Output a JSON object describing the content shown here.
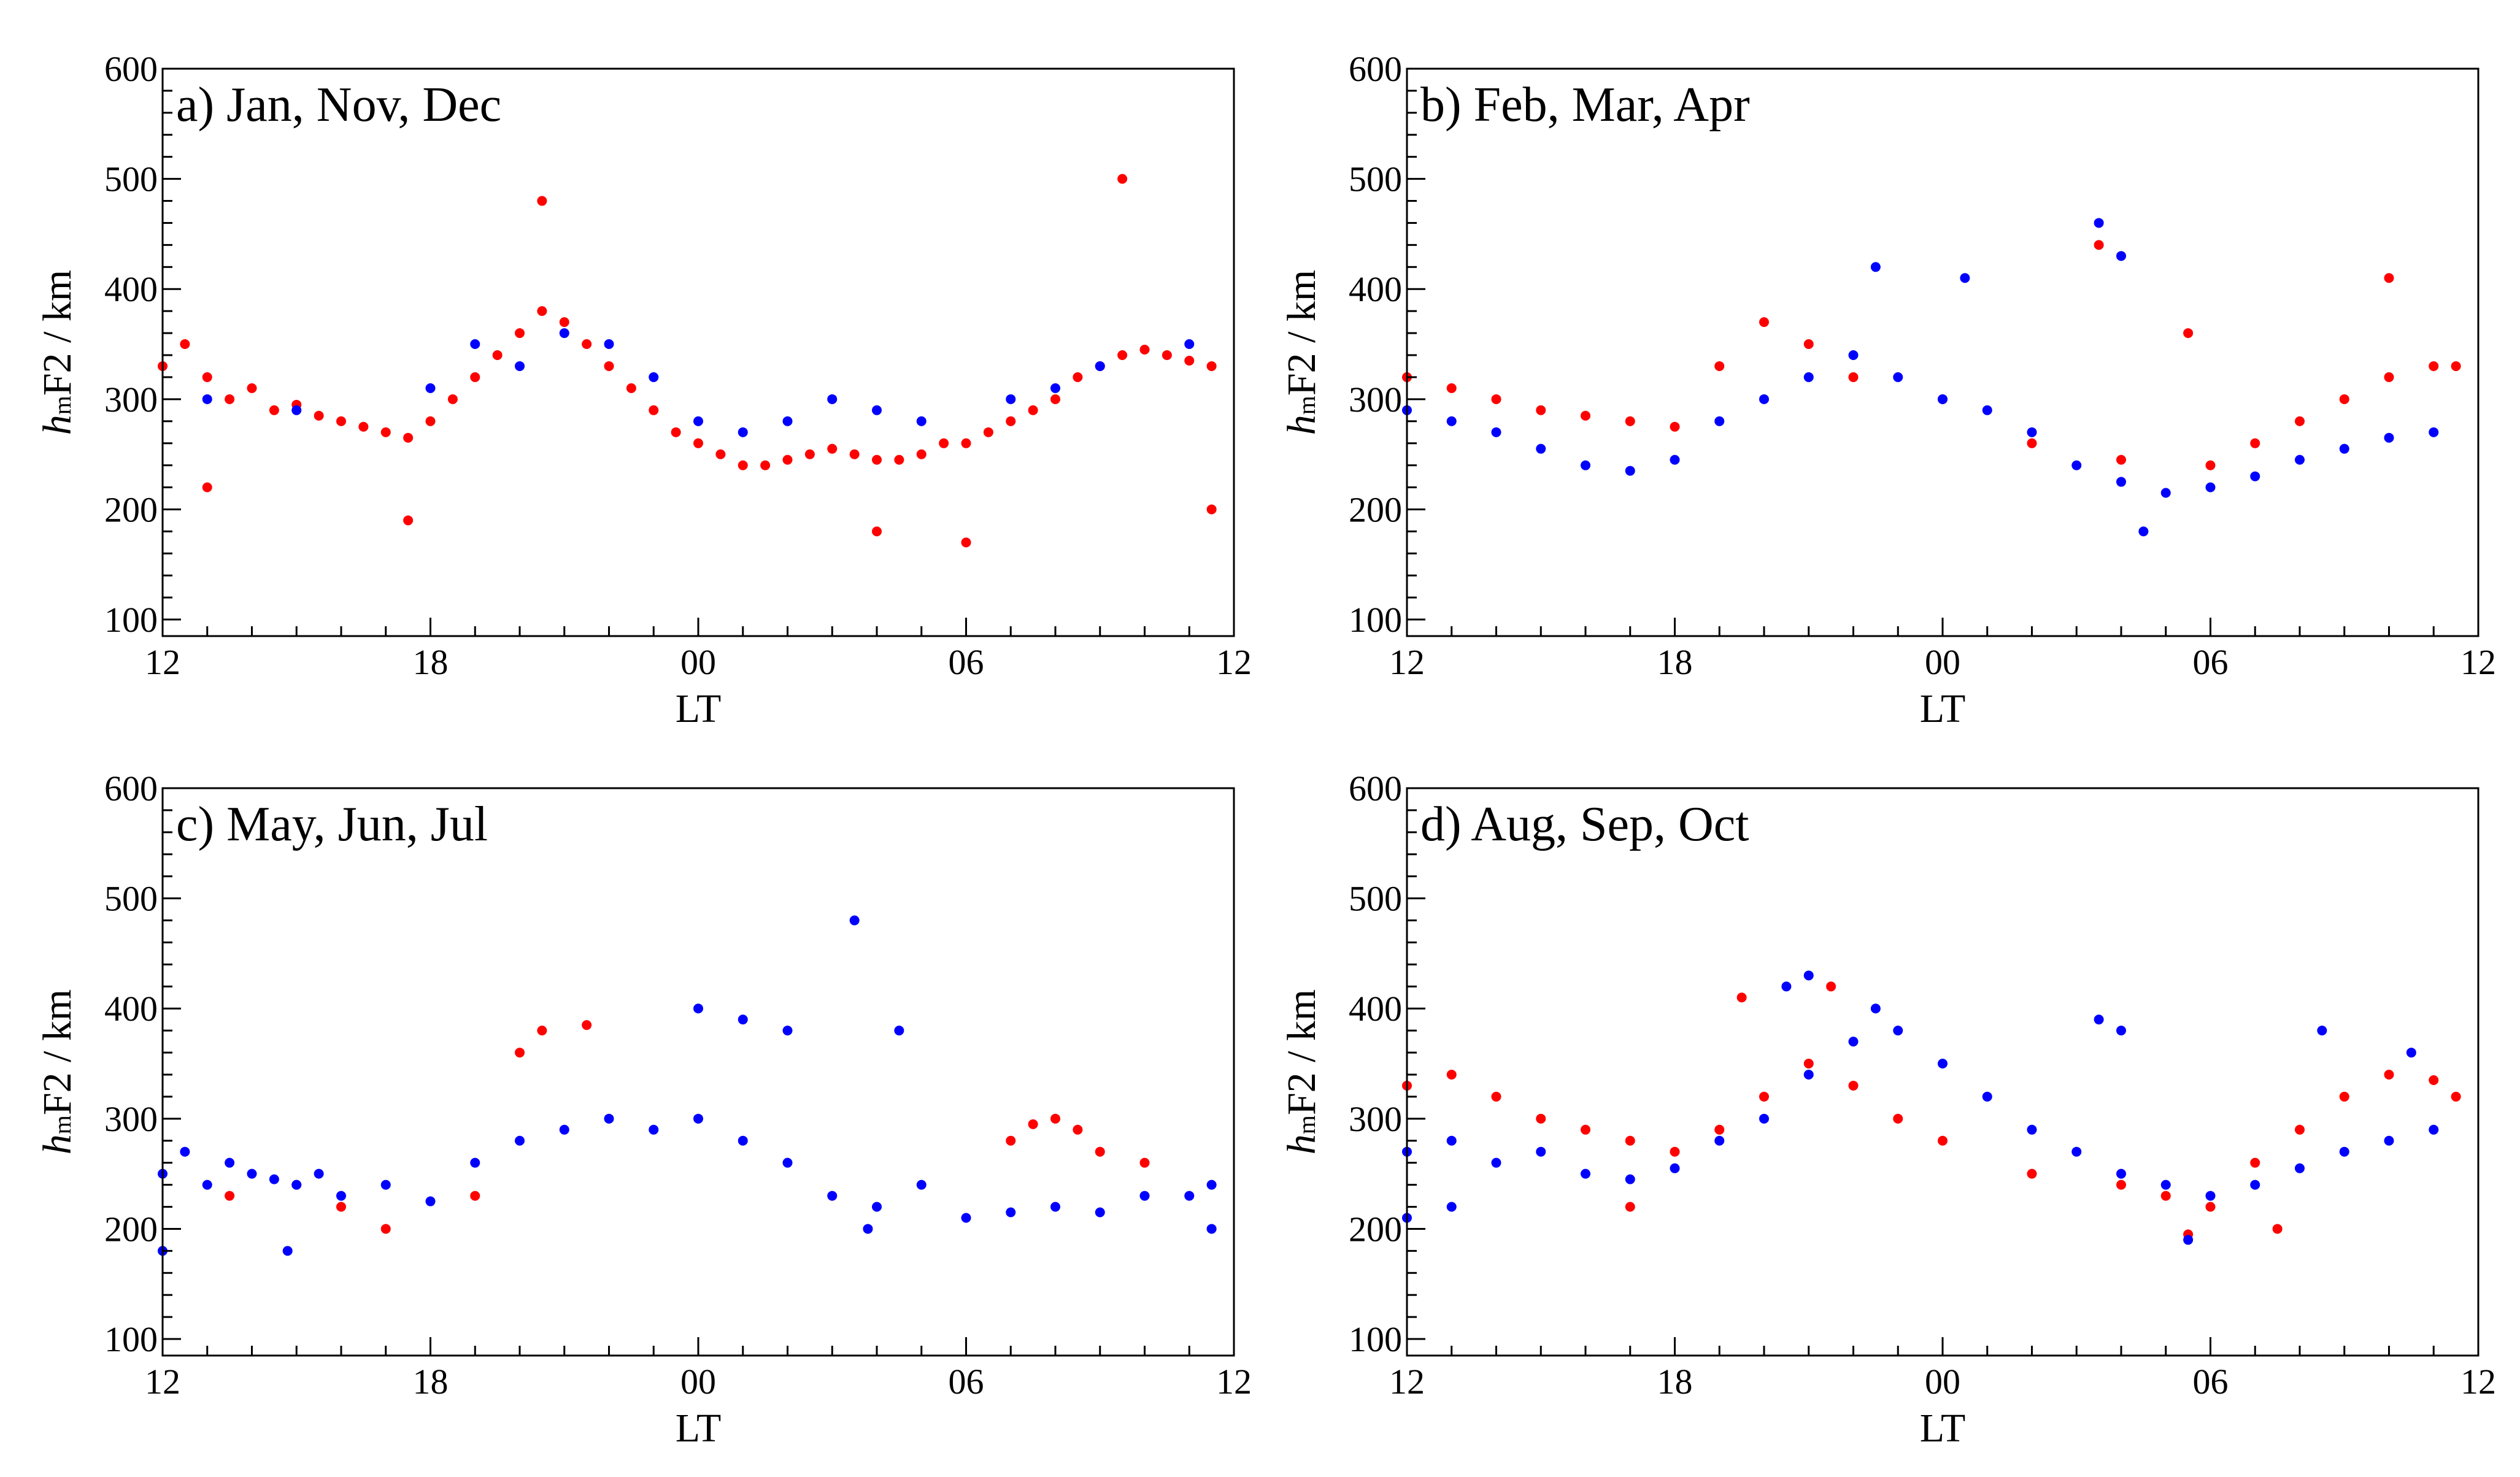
{
  "figure": {
    "colors": {
      "series_a": "#ff0000",
      "series_b": "#0000ff",
      "axis": "#000000"
    }
  },
  "chart_data": [
    {
      "type": "scatter",
      "title": "a) Jan, Nov, Dec",
      "xlabel": "LT",
      "ylabel_main": "h",
      "ylabel_sub": "m",
      "ylabel_rest": "F2 / km",
      "x_ticks": [
        "12",
        "18",
        "00",
        "06",
        "12"
      ],
      "y_ticks": [
        "100",
        "200",
        "300",
        "400",
        "500",
        "600"
      ],
      "xlim": [
        0,
        24
      ],
      "ylim": [
        85,
        600
      ],
      "x_axis_note": "hours elapsed since 12 LT",
      "series": [
        {
          "color": "#ff0000",
          "points": [
            [
              0,
              330
            ],
            [
              0.5,
              350
            ],
            [
              1,
              320
            ],
            [
              1.5,
              300
            ],
            [
              2,
              310
            ],
            [
              2.5,
              290
            ],
            [
              3,
              295
            ],
            [
              3.5,
              285
            ],
            [
              4,
              280
            ],
            [
              4.5,
              275
            ],
            [
              5,
              270
            ],
            [
              5.5,
              265
            ],
            [
              6,
              280
            ],
            [
              6.5,
              300
            ],
            [
              7,
              320
            ],
            [
              7.5,
              340
            ],
            [
              8,
              360
            ],
            [
              8.5,
              380
            ],
            [
              9,
              370
            ],
            [
              9.5,
              350
            ],
            [
              10,
              330
            ],
            [
              10.5,
              310
            ],
            [
              11,
              290
            ],
            [
              11.5,
              270
            ],
            [
              12,
              260
            ],
            [
              12.5,
              250
            ],
            [
              13,
              240
            ],
            [
              13.5,
              240
            ],
            [
              14,
              245
            ],
            [
              14.5,
              250
            ],
            [
              15,
              255
            ],
            [
              15.5,
              250
            ],
            [
              16,
              245
            ],
            [
              16.5,
              245
            ],
            [
              17,
              250
            ],
            [
              17.5,
              260
            ],
            [
              18,
              260
            ],
            [
              18.5,
              270
            ],
            [
              19,
              280
            ],
            [
              19.5,
              290
            ],
            [
              20,
              300
            ],
            [
              20.5,
              320
            ],
            [
              21,
              330
            ],
            [
              21.5,
              340
            ],
            [
              22,
              345
            ],
            [
              22.5,
              340
            ],
            [
              23,
              335
            ],
            [
              23.5,
              330
            ],
            [
              1,
              220
            ],
            [
              5.5,
              190
            ],
            [
              8.5,
              480
            ],
            [
              21.5,
              500
            ],
            [
              18,
              170
            ],
            [
              23.5,
              200
            ],
            [
              16,
              180
            ]
          ]
        },
        {
          "color": "#0000ff",
          "points": [
            [
              1,
              300
            ],
            [
              3,
              290
            ],
            [
              6,
              310
            ],
            [
              8,
              330
            ],
            [
              9,
              360
            ],
            [
              10,
              350
            ],
            [
              11,
              320
            ],
            [
              12,
              280
            ],
            [
              13,
              270
            ],
            [
              14,
              280
            ],
            [
              15,
              300
            ],
            [
              16,
              290
            ],
            [
              17,
              280
            ],
            [
              19,
              300
            ],
            [
              21,
              330
            ],
            [
              23,
              350
            ],
            [
              7,
              350
            ],
            [
              20,
              310
            ]
          ]
        }
      ]
    },
    {
      "type": "scatter",
      "title": "b) Feb, Mar, Apr",
      "xlabel": "LT",
      "ylabel_main": "h",
      "ylabel_sub": "m",
      "ylabel_rest": "F2 / km",
      "x_ticks": [
        "12",
        "18",
        "00",
        "06",
        "12"
      ],
      "y_ticks": [
        "100",
        "200",
        "300",
        "400",
        "500",
        "600"
      ],
      "xlim": [
        0,
        24
      ],
      "ylim": [
        85,
        600
      ],
      "x_axis_note": "hours elapsed since 12 LT",
      "series": [
        {
          "color": "#ff0000",
          "points": [
            [
              0,
              320
            ],
            [
              1,
              310
            ],
            [
              2,
              300
            ],
            [
              3,
              290
            ],
            [
              4,
              285
            ],
            [
              5,
              280
            ],
            [
              6,
              275
            ],
            [
              7,
              330
            ],
            [
              8,
              370
            ],
            [
              9,
              350
            ],
            [
              10,
              320
            ],
            [
              12,
              300
            ],
            [
              14,
              260
            ],
            [
              16,
              245
            ],
            [
              18,
              240
            ],
            [
              19,
              260
            ],
            [
              20,
              280
            ],
            [
              21,
              300
            ],
            [
              22,
              320
            ],
            [
              23,
              330
            ],
            [
              23.5,
              330
            ],
            [
              15.5,
              440
            ],
            [
              22,
              410
            ],
            [
              17.5,
              360
            ]
          ]
        },
        {
          "color": "#0000ff",
          "points": [
            [
              0,
              290
            ],
            [
              1,
              280
            ],
            [
              2,
              270
            ],
            [
              3,
              255
            ],
            [
              4,
              240
            ],
            [
              5,
              235
            ],
            [
              6,
              245
            ],
            [
              7,
              280
            ],
            [
              8,
              300
            ],
            [
              9,
              320
            ],
            [
              10,
              340
            ],
            [
              11,
              320
            ],
            [
              12,
              300
            ],
            [
              13,
              290
            ],
            [
              14,
              270
            ],
            [
              15,
              240
            ],
            [
              16,
              225
            ],
            [
              17,
              215
            ],
            [
              18,
              220
            ],
            [
              19,
              230
            ],
            [
              20,
              245
            ],
            [
              21,
              255
            ],
            [
              22,
              265
            ],
            [
              23,
              270
            ],
            [
              10.5,
              420
            ],
            [
              12.5,
              410
            ],
            [
              15.5,
              460
            ],
            [
              16,
              430
            ],
            [
              16.5,
              180
            ]
          ]
        }
      ]
    },
    {
      "type": "scatter",
      "title": "c) May, Jun, Jul",
      "xlabel": "LT",
      "ylabel_main": "h",
      "ylabel_sub": "m",
      "ylabel_rest": "F2 / km",
      "x_ticks": [
        "12",
        "18",
        "00",
        "06",
        "12"
      ],
      "y_ticks": [
        "100",
        "200",
        "300",
        "400",
        "500",
        "600"
      ],
      "xlim": [
        0,
        24
      ],
      "ylim": [
        85,
        600
      ],
      "x_axis_note": "hours elapsed since 12 LT",
      "series": [
        {
          "color": "#ff0000",
          "points": [
            [
              1.5,
              230
            ],
            [
              3,
              240
            ],
            [
              4,
              220
            ],
            [
              5,
              200
            ],
            [
              7,
              230
            ],
            [
              8,
              360
            ],
            [
              8.5,
              380
            ],
            [
              9.5,
              385
            ],
            [
              19,
              280
            ],
            [
              19.5,
              295
            ],
            [
              20,
              300
            ],
            [
              20.5,
              290
            ],
            [
              21,
              270
            ],
            [
              22,
              260
            ]
          ]
        },
        {
          "color": "#0000ff",
          "points": [
            [
              0,
              250
            ],
            [
              0.5,
              270
            ],
            [
              1,
              240
            ],
            [
              1.5,
              260
            ],
            [
              2,
              250
            ],
            [
              2.5,
              245
            ],
            [
              3,
              240
            ],
            [
              3.5,
              250
            ],
            [
              4,
              230
            ],
            [
              5,
              240
            ],
            [
              6,
              225
            ],
            [
              7,
              260
            ],
            [
              8,
              280
            ],
            [
              9,
              290
            ],
            [
              10,
              300
            ],
            [
              11,
              290
            ],
            [
              12,
              300
            ],
            [
              13,
              280
            ],
            [
              14,
              260
            ],
            [
              15,
              230
            ],
            [
              16,
              220
            ],
            [
              17,
              240
            ],
            [
              18,
              210
            ],
            [
              19,
              215
            ],
            [
              20,
              220
            ],
            [
              21,
              215
            ],
            [
              22,
              230
            ],
            [
              23,
              230
            ],
            [
              23.5,
              240
            ],
            [
              15.5,
              480
            ],
            [
              14,
              380
            ],
            [
              16.5,
              380
            ],
            [
              13,
              390
            ],
            [
              0,
              180
            ],
            [
              2.8,
              180
            ],
            [
              15.8,
              200
            ],
            [
              23.5,
              200
            ],
            [
              12,
              400
            ]
          ]
        }
      ]
    },
    {
      "type": "scatter",
      "title": "d) Aug, Sep, Oct",
      "xlabel": "LT",
      "ylabel_main": "h",
      "ylabel_sub": "m",
      "ylabel_rest": "F2 / km",
      "x_ticks": [
        "12",
        "18",
        "00",
        "06",
        "12"
      ],
      "y_ticks": [
        "100",
        "200",
        "300",
        "400",
        "500",
        "600"
      ],
      "xlim": [
        0,
        24
      ],
      "ylim": [
        85,
        600
      ],
      "x_axis_note": "hours elapsed since 12 LT",
      "series": [
        {
          "color": "#ff0000",
          "points": [
            [
              0,
              330
            ],
            [
              1,
              340
            ],
            [
              2,
              320
            ],
            [
              3,
              300
            ],
            [
              4,
              290
            ],
            [
              5,
              280
            ],
            [
              6,
              270
            ],
            [
              7,
              290
            ],
            [
              8,
              320
            ],
            [
              9,
              350
            ],
            [
              10,
              330
            ],
            [
              11,
              300
            ],
            [
              12,
              280
            ],
            [
              14,
              250
            ],
            [
              16,
              240
            ],
            [
              17,
              230
            ],
            [
              18,
              220
            ],
            [
              19,
              260
            ],
            [
              20,
              290
            ],
            [
              21,
              320
            ],
            [
              22,
              340
            ],
            [
              23,
              335
            ],
            [
              23.5,
              320
            ],
            [
              7.5,
              410
            ],
            [
              9.5,
              420
            ],
            [
              5,
              220
            ],
            [
              17.5,
              195
            ],
            [
              19.5,
              200
            ]
          ]
        },
        {
          "color": "#0000ff",
          "points": [
            [
              0,
              270
            ],
            [
              1,
              280
            ],
            [
              2,
              260
            ],
            [
              3,
              270
            ],
            [
              4,
              250
            ],
            [
              5,
              245
            ],
            [
              6,
              255
            ],
            [
              7,
              280
            ],
            [
              8,
              300
            ],
            [
              9,
              340
            ],
            [
              10,
              370
            ],
            [
              10.5,
              400
            ],
            [
              11,
              380
            ],
            [
              12,
              350
            ],
            [
              13,
              320
            ],
            [
              14,
              290
            ],
            [
              15,
              270
            ],
            [
              16,
              250
            ],
            [
              17,
              240
            ],
            [
              18,
              230
            ],
            [
              19,
              240
            ],
            [
              20,
              255
            ],
            [
              21,
              270
            ],
            [
              22,
              280
            ],
            [
              23,
              290
            ],
            [
              9,
              430
            ],
            [
              8.5,
              420
            ],
            [
              15.5,
              390
            ],
            [
              16,
              380
            ],
            [
              20.5,
              380
            ],
            [
              22.5,
              360
            ],
            [
              17.5,
              190
            ],
            [
              0,
              210
            ],
            [
              1,
              220
            ]
          ]
        }
      ]
    }
  ]
}
